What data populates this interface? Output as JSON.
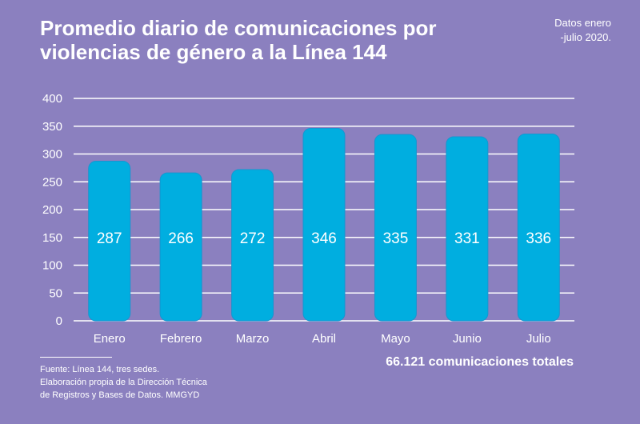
{
  "title_lines": [
    "Promedio diario de comunicaciones por",
    "violencias de género a la Línea 144"
  ],
  "note_lines": [
    "Datos enero",
    "-julio 2020."
  ],
  "total": "66.121 comunicaciones totales",
  "source_lines": [
    "Fuente: Línea 144, tres sedes.",
    "Elaboración propia de la Dirección Técnica",
    "de Registros y Bases de Datos. MMGYD"
  ],
  "colors": {
    "background": "#8b80bf",
    "bar": "#00aee0",
    "bar_border": "#1596d0",
    "text": "#ffffff"
  },
  "chart_data": {
    "type": "bar",
    "categories": [
      "Enero",
      "Febrero",
      "Marzo",
      "Abril",
      "Mayo",
      "Junio",
      "Julio"
    ],
    "values": [
      287,
      266,
      272,
      346,
      335,
      331,
      336
    ],
    "data_labels": [
      "287",
      "266",
      "272",
      "346",
      "335",
      "331",
      "336"
    ],
    "yticks": [
      "0",
      "50",
      "100",
      "150",
      "200",
      "250",
      "300",
      "350",
      "400"
    ],
    "title": "Promedio diario de comunicaciones por violencias de género a la Línea 144",
    "xlabel": "",
    "ylabel": "",
    "ylim": [
      0,
      400
    ],
    "grid": true
  }
}
